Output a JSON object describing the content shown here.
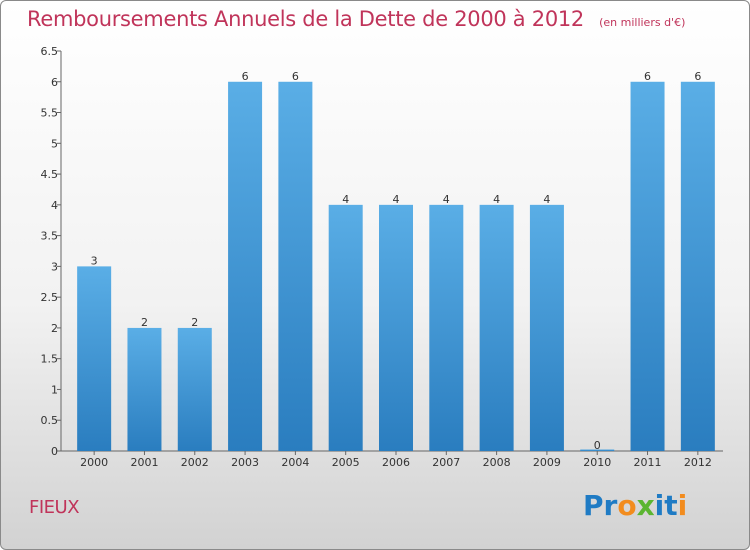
{
  "chart_data": {
    "type": "bar",
    "title": "Remboursements Annuels de la Dette de 2000 à 2012",
    "subtitle": "(en milliers d'€)",
    "categories": [
      "2000",
      "2001",
      "2002",
      "2003",
      "2004",
      "2005",
      "2006",
      "2007",
      "2008",
      "2009",
      "2010",
      "2011",
      "2012"
    ],
    "values": [
      3,
      2,
      2,
      6,
      6,
      4,
      4,
      4,
      4,
      4,
      0,
      6,
      6
    ],
    "data_labels": [
      "3",
      "2",
      "2",
      "6",
      "6",
      "4",
      "4",
      "4",
      "4",
      "4",
      "0",
      "6",
      "6"
    ],
    "ylim": [
      0,
      6.5
    ],
    "yticks": [
      0,
      0.5,
      1,
      1.5,
      2,
      2.5,
      3,
      3.5,
      4,
      4.5,
      5,
      5.5,
      6,
      6.5
    ],
    "ytick_labels": [
      "0",
      "0.5",
      "1",
      "1.5",
      "2",
      "2.5",
      "3",
      "3.5",
      "4",
      "4.5",
      "5",
      "5.5",
      "6",
      "6.5"
    ],
    "grid": false,
    "xlabel": "",
    "ylabel": "",
    "bar_color_top": "#5aaee6",
    "bar_color_bottom": "#2a7dbf"
  },
  "footer": {
    "commune": "FIEUX"
  },
  "brand": {
    "letters": [
      "P",
      "r",
      "o",
      "x",
      "i",
      "t",
      "i"
    ],
    "colors": [
      "#1f7bc4",
      "#1f7bc4",
      "#f28c1e",
      "#5bb531",
      "#1f7bc4",
      "#1f7bc4",
      "#f28c1e"
    ]
  }
}
